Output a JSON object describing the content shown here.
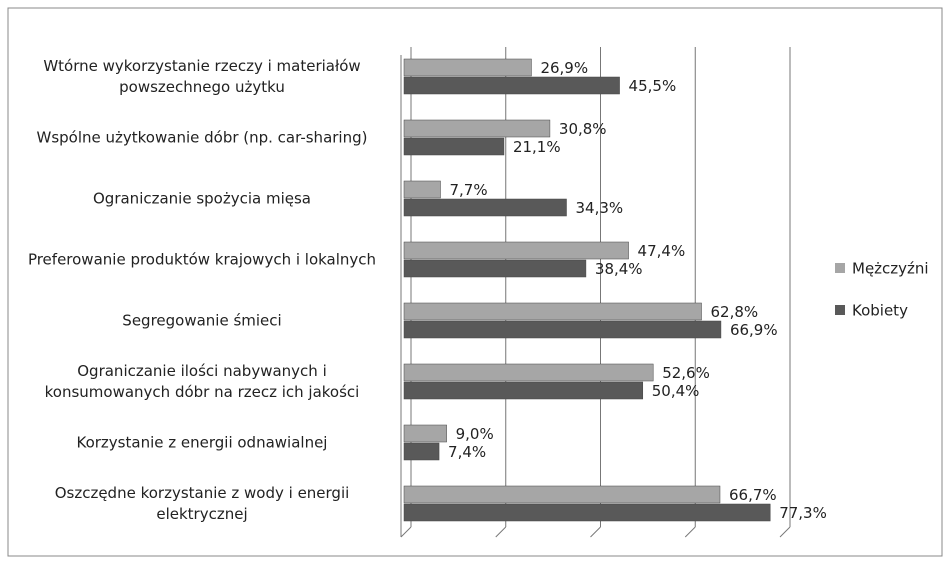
{
  "chart_data": {
    "type": "bar",
    "orientation": "horizontal",
    "categories": [
      "Wtórne wykorzystanie rzeczy i materiałów powszechnego użytku",
      "Wspólne użytkowanie dóbr (np. car-sharing)",
      "Ograniczanie spożycia mięsa",
      "Preferowanie produktów krajowych i lokalnych",
      "Segregowanie śmieci",
      "Ograniczanie ilości nabywanych i konsumowanych dóbr na rzecz ich jakości",
      "Korzystanie z energii odnawialnej",
      "Oszczędne korzystanie z wody i energii elektrycznej"
    ],
    "series": [
      {
        "name": "Mężczyźni",
        "color": "#a6a6a6",
        "values": [
          26.9,
          30.8,
          7.7,
          47.4,
          62.8,
          52.6,
          9.0,
          66.7
        ],
        "value_labels": [
          "26,9%",
          "30,8%",
          "7,7%",
          "47,4%",
          "62,8%",
          "52,6%",
          "9,0%",
          "66,7%"
        ]
      },
      {
        "name": "Kobiety",
        "color": "#595959",
        "values": [
          45.5,
          21.1,
          34.3,
          38.4,
          66.9,
          50.4,
          7.4,
          77.3
        ],
        "value_labels": [
          "45,5%",
          "21,1%",
          "34,3%",
          "38,4%",
          "66,9%",
          "50,4%",
          "7,4%",
          "77,3%"
        ]
      }
    ],
    "xlim": [
      0,
      80
    ],
    "xticks": [
      0,
      20,
      40,
      60,
      80
    ],
    "grid": true,
    "legend": "right"
  }
}
